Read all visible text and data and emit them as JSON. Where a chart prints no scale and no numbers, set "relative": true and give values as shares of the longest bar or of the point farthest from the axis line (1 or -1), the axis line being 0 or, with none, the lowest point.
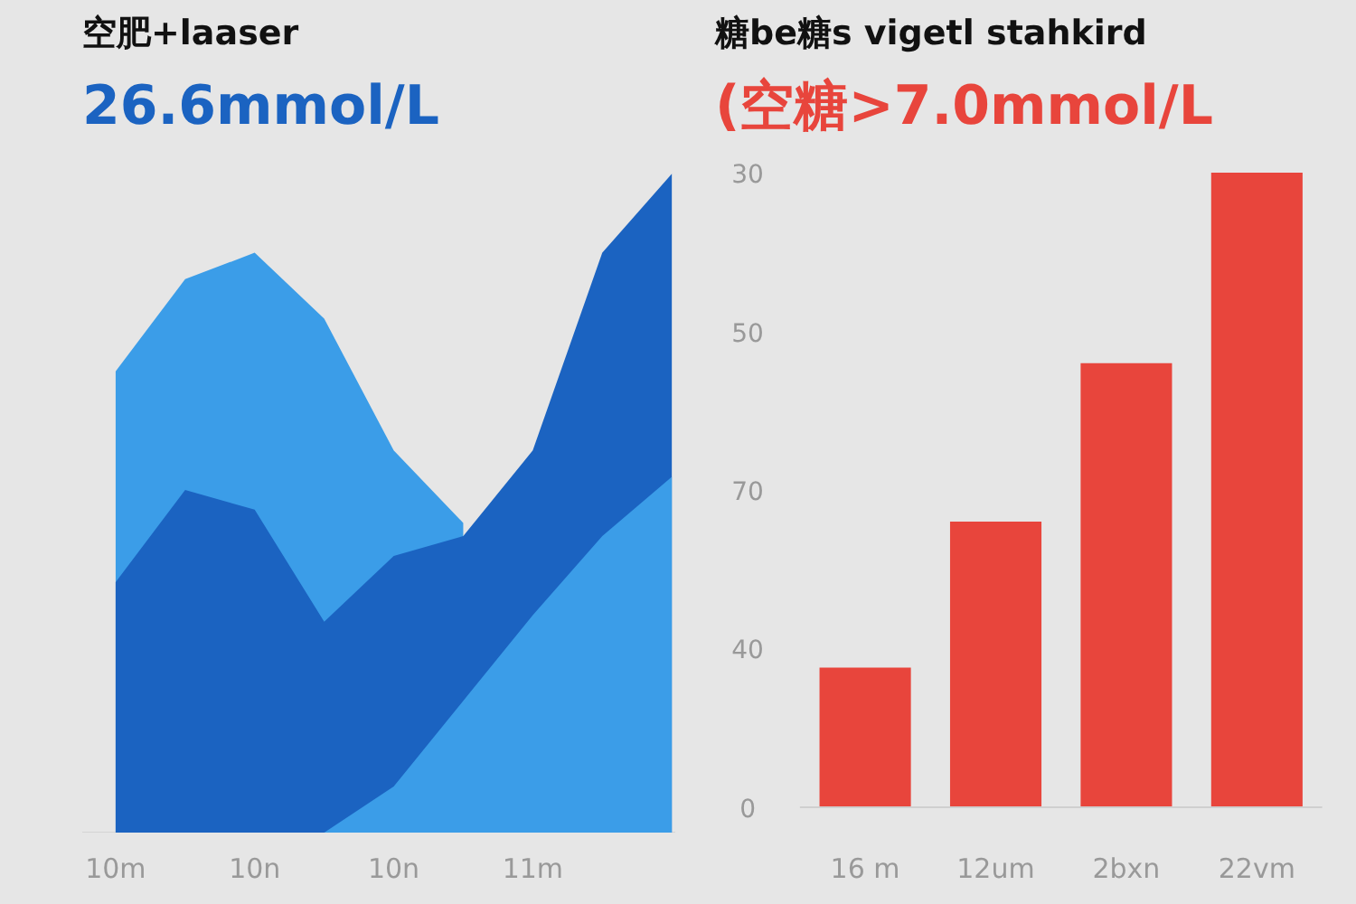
{
  "chart_data": [
    {
      "type": "area",
      "title": "空肥+laaser",
      "subtitle": "26.6mmol/L",
      "relative": true,
      "categories": [
        "10m",
        null,
        "10n",
        null,
        "10n",
        null,
        "11m",
        null,
        null
      ],
      "series": [
        {
          "color": "#3b9de8",
          "values": [
            0.7,
            0.84,
            0.88,
            0.78,
            0.58,
            0.47,
            null,
            null,
            null
          ]
        },
        {
          "color": "#1b63c1",
          "values": [
            0.38,
            0.52,
            0.49,
            0.32,
            0.42,
            0.45,
            0.58,
            0.88,
            1.0
          ]
        },
        {
          "color": "#3b9de8",
          "values": [
            null,
            null,
            null,
            0,
            0.07,
            0.2,
            0.33,
            0.45,
            0.54
          ]
        }
      ]
    },
    {
      "type": "bar",
      "title": "糖be糖s vigetl stahkird",
      "subtitle": "(空糖>7.0mmol/L",
      "relative": true,
      "categories": [
        "16 m",
        "12um",
        "2bxn",
        "22vm"
      ],
      "values": [
        0.22,
        0.45,
        0.7,
        1.0
      ],
      "color": "#e8453c",
      "annotations": [
        "30",
        "50",
        "70",
        "40",
        "0"
      ]
    }
  ]
}
